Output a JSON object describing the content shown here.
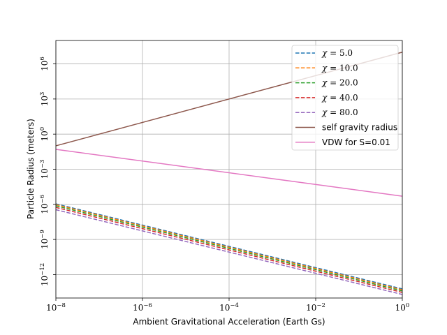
{
  "chart_data": {
    "type": "line",
    "title": "",
    "xlabel": "Ambient Gravitational Acceleration (Earth Gs)",
    "ylabel": "Particle Radius (meters)",
    "xscale": "log",
    "yscale": "log",
    "xlim": [
      1e-08,
      1
    ],
    "ylim": [
      1e-14,
      100000000.0
    ],
    "grid": true,
    "legend_position": "top-right",
    "x_ticks": [
      {
        "value": 1e-08,
        "base": "10",
        "exp": "−8"
      },
      {
        "value": 1e-06,
        "base": "10",
        "exp": "−6"
      },
      {
        "value": 0.0001,
        "base": "10",
        "exp": "−4"
      },
      {
        "value": 0.01,
        "base": "10",
        "exp": "−2"
      },
      {
        "value": 1,
        "base": "10",
        "exp": "0"
      }
    ],
    "y_ticks": [
      {
        "value": 1e-12,
        "base": "10",
        "exp": "−12"
      },
      {
        "value": 1e-09,
        "base": "10",
        "exp": "−9"
      },
      {
        "value": 1e-06,
        "base": "10",
        "exp": "−6"
      },
      {
        "value": 0.001,
        "base": "10",
        "exp": "−3"
      },
      {
        "value": 1,
        "base": "10",
        "exp": "0"
      },
      {
        "value": 1000.0,
        "base": "10",
        "exp": "3"
      },
      {
        "value": 1000000.0,
        "base": "10",
        "exp": "6"
      }
    ],
    "series": [
      {
        "name": "χ = 5.0",
        "legend_prefix": "χ = ",
        "legend_value": "5.0",
        "color": "#1f77b4",
        "dashed": true,
        "x": [
          1e-08,
          1
        ],
        "y": [
          1.1e-06,
          6e-14
        ]
      },
      {
        "name": "χ = 10.0",
        "legend_prefix": "χ = ",
        "legend_value": "10.0",
        "color": "#ff7f0e",
        "dashed": true,
        "x": [
          1e-08,
          1
        ],
        "y": [
          9.5e-07,
          5e-14
        ]
      },
      {
        "name": "χ = 20.0",
        "legend_prefix": "χ = ",
        "legend_value": "20.0",
        "color": "#2ca02c",
        "dashed": true,
        "x": [
          1e-08,
          1
        ],
        "y": [
          7.5e-07,
          4e-14
        ]
      },
      {
        "name": "χ = 40.0",
        "legend_prefix": "χ = ",
        "legend_value": "40.0",
        "color": "#d62728",
        "dashed": true,
        "x": [
          1e-08,
          1
        ],
        "y": [
          5.5e-07,
          3e-14
        ]
      },
      {
        "name": "χ = 80.0",
        "legend_prefix": "χ = ",
        "legend_value": "80.0",
        "color": "#9467bd",
        "dashed": true,
        "x": [
          1e-08,
          1
        ],
        "y": [
          3.5e-07,
          2e-14
        ]
      },
      {
        "name": "self gravity radius",
        "color": "#8c564b",
        "dashed": false,
        "x": [
          1e-08,
          1
        ],
        "y": [
          0.1,
          10000000.0
        ]
      },
      {
        "name": "VDW for S=0.01",
        "color": "#e377c2",
        "dashed": false,
        "x": [
          1e-08,
          1
        ],
        "y": [
          0.05,
          5e-06
        ]
      }
    ]
  }
}
